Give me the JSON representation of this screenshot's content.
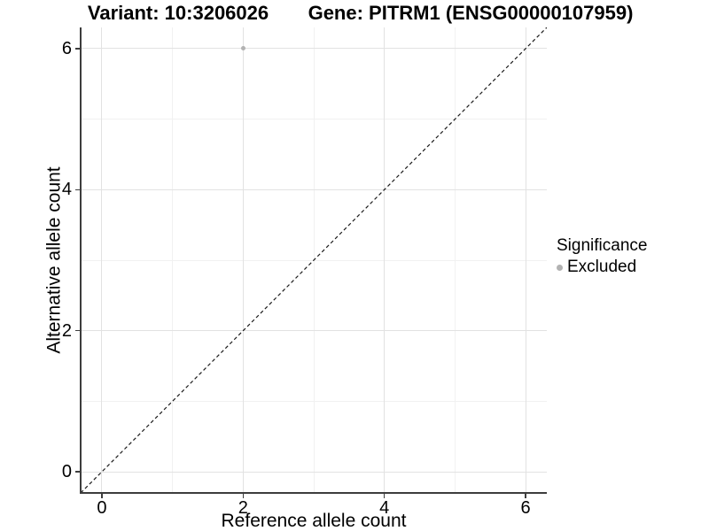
{
  "titles": {
    "variant": "Variant: 10:3206026",
    "gene": "Gene: PITRM1 (ENSG00000107959)"
  },
  "axes": {
    "x_title": "Reference allele count",
    "y_title": "Alternative allele count"
  },
  "legend": {
    "title": "Significance",
    "items": [
      {
        "label": "Excluded",
        "color": "#b2b2b2"
      }
    ]
  },
  "colors": {
    "background": "#ffffff",
    "grid_major": "#e2e2e2",
    "grid_minor": "#f1f1f1",
    "axis_line": "#3d3d3d",
    "reference_line": "#1a1a1a",
    "point_excluded": "#b2b2b2",
    "text": "#000000"
  },
  "chart_data": {
    "type": "scatter",
    "title_left": "Variant: 10:3206026",
    "title_right": "Gene: PITRM1 (ENSG00000107959)",
    "xlabel": "Reference allele count",
    "ylabel": "Alternative allele count",
    "xlim": [
      -0.3,
      6.3
    ],
    "ylim": [
      -0.3,
      6.3
    ],
    "x_ticks": [
      0,
      2,
      4,
      6
    ],
    "y_ticks": [
      0,
      2,
      4,
      6
    ],
    "x_minor_ticks": [
      1,
      3,
      5
    ],
    "y_minor_ticks": [
      1,
      3,
      5
    ],
    "grid": true,
    "legend_position": "right",
    "legend_title": "Significance",
    "series": [
      {
        "name": "Excluded",
        "color": "#b2b2b2",
        "points": [
          {
            "x": 2,
            "y": 6
          }
        ]
      }
    ],
    "reference_line": {
      "kind": "abline",
      "slope": 1,
      "intercept": 0,
      "style": "dashed",
      "color": "#1a1a1a"
    }
  }
}
